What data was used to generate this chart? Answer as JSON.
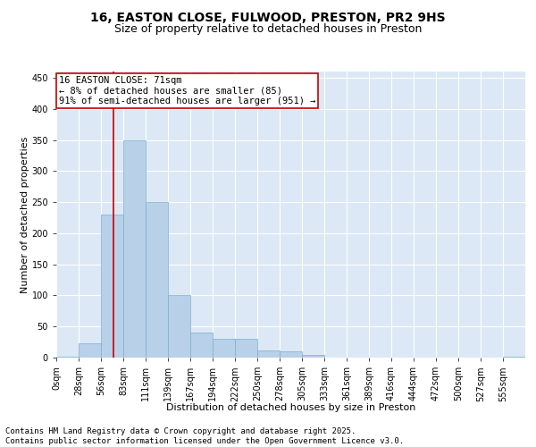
{
  "title1": "16, EASTON CLOSE, FULWOOD, PRESTON, PR2 9HS",
  "title2": "Size of property relative to detached houses in Preston",
  "xlabel": "Distribution of detached houses by size in Preston",
  "ylabel": "Number of detached properties",
  "categories": [
    "0sqm",
    "28sqm",
    "56sqm",
    "83sqm",
    "111sqm",
    "139sqm",
    "167sqm",
    "194sqm",
    "222sqm",
    "250sqm",
    "278sqm",
    "305sqm",
    "333sqm",
    "361sqm",
    "389sqm",
    "416sqm",
    "444sqm",
    "472sqm",
    "500sqm",
    "527sqm",
    "555sqm"
  ],
  "values": [
    2,
    23,
    230,
    350,
    250,
    100,
    40,
    30,
    30,
    12,
    10,
    5,
    0,
    0,
    0,
    0,
    0,
    0,
    0,
    0,
    1
  ],
  "bar_color": "#b8d0e8",
  "bar_edge_color": "#7aafd0",
  "vline_x": 2.57,
  "vline_color": "#cc0000",
  "annotation_text": "16 EASTON CLOSE: 71sqm\n← 8% of detached houses are smaller (85)\n91% of semi-detached houses are larger (951) →",
  "annotation_box_color": "#ffffff",
  "annotation_box_edge": "#cc0000",
  "ylim": [
    0,
    460
  ],
  "yticks": [
    0,
    50,
    100,
    150,
    200,
    250,
    300,
    350,
    400,
    450
  ],
  "background_color": "#dce8f5",
  "grid_color": "#ffffff",
  "footer_text": "Contains HM Land Registry data © Crown copyright and database right 2025.\nContains public sector information licensed under the Open Government Licence v3.0.",
  "title_fontsize": 10,
  "subtitle_fontsize": 9,
  "label_fontsize": 8,
  "tick_fontsize": 7,
  "footer_fontsize": 6.5,
  "annotation_fontsize": 7.5
}
